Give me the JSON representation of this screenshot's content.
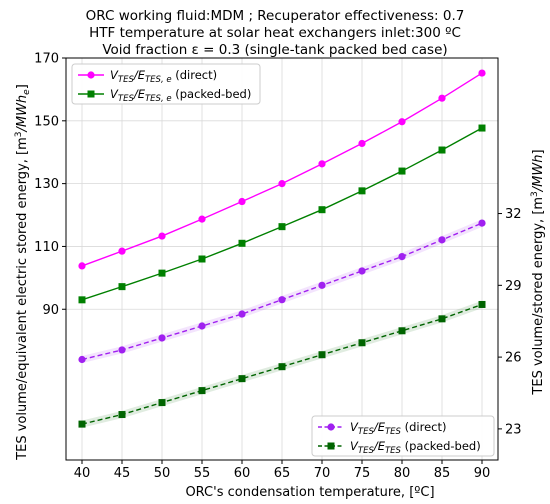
{
  "chart_data": {
    "type": "line",
    "title_lines": [
      "ORC working fluid:MDM ; Recuperator effectiveness: 0.7",
      "HTF temperature at solar heat exchangers inlet:300 ºC",
      "Void fraction ε = 0.3 (single-tank packed bed case)"
    ],
    "xlabel": "ORC's condensation temperature, [ºC]",
    "ylabel_left": {
      "main": "TES volume/equivalent electric stored energy, [m",
      "sup": "3",
      "mid": "/MWh",
      "sub": "e",
      "end": "]"
    },
    "ylabel_right": {
      "main": "TES volume/stored energy, [m",
      "sup": "3",
      "mid": "/MWh",
      "end": "]"
    },
    "x": [
      40,
      45,
      50,
      55,
      60,
      65,
      70,
      75,
      80,
      85,
      90
    ],
    "x_ticks": [
      "40",
      "45",
      "50",
      "55",
      "60",
      "65",
      "70",
      "75",
      "80",
      "85",
      "90"
    ],
    "xlim": [
      38,
      92
    ],
    "left_axis": {
      "ylim": [
        42,
        170
      ],
      "ticks": [
        "90",
        "110",
        "130",
        "150",
        "170"
      ],
      "tick_values": [
        90,
        110,
        130,
        150,
        170
      ]
    },
    "right_axis": {
      "ylim": [
        21.7,
        38.5
      ],
      "ticks": [
        "23",
        "26",
        "29",
        "32"
      ],
      "tick_values": [
        23,
        26,
        29,
        32
      ]
    },
    "grid": true,
    "series": [
      {
        "axis": "left",
        "legend": {
          "v": "V",
          "vsub": "TES",
          "slash": "/E",
          "esub": "TES, e",
          "text": " (direct)"
        },
        "color": "#ff00ff",
        "marker": "circle",
        "dash": false,
        "values": [
          103.8,
          108.5,
          113.3,
          118.7,
          124.3,
          130.0,
          136.3,
          142.8,
          149.7,
          157.2,
          165.2
        ]
      },
      {
        "axis": "left",
        "legend": {
          "v": "V",
          "vsub": "TES",
          "slash": "/E",
          "esub": "TES, e",
          "text": " (packed-bed)"
        },
        "color": "#008000",
        "marker": "square",
        "dash": false,
        "values": [
          93.0,
          97.2,
          101.5,
          106.0,
          111.0,
          116.3,
          121.7,
          127.7,
          134.0,
          140.7,
          147.7
        ]
      },
      {
        "axis": "right",
        "legend": {
          "v": "V",
          "vsub": "TES",
          "slash": "/E",
          "esub": "TES",
          "text": " (direct)"
        },
        "color": "#a020f0",
        "marker": "circle",
        "dash": true,
        "values": [
          25.9,
          26.3,
          26.8,
          27.3,
          27.8,
          28.4,
          29.0,
          29.6,
          30.2,
          30.9,
          31.6
        ]
      },
      {
        "axis": "right",
        "legend": {
          "v": "V",
          "vsub": "TES",
          "slash": "/E",
          "esub": "TES",
          "text": " (packed-bed)"
        },
        "color": "#006400",
        "marker": "square",
        "dash": true,
        "values": [
          23.2,
          23.6,
          24.1,
          24.6,
          25.1,
          25.6,
          26.1,
          26.6,
          27.1,
          27.6,
          28.2
        ]
      }
    ]
  }
}
